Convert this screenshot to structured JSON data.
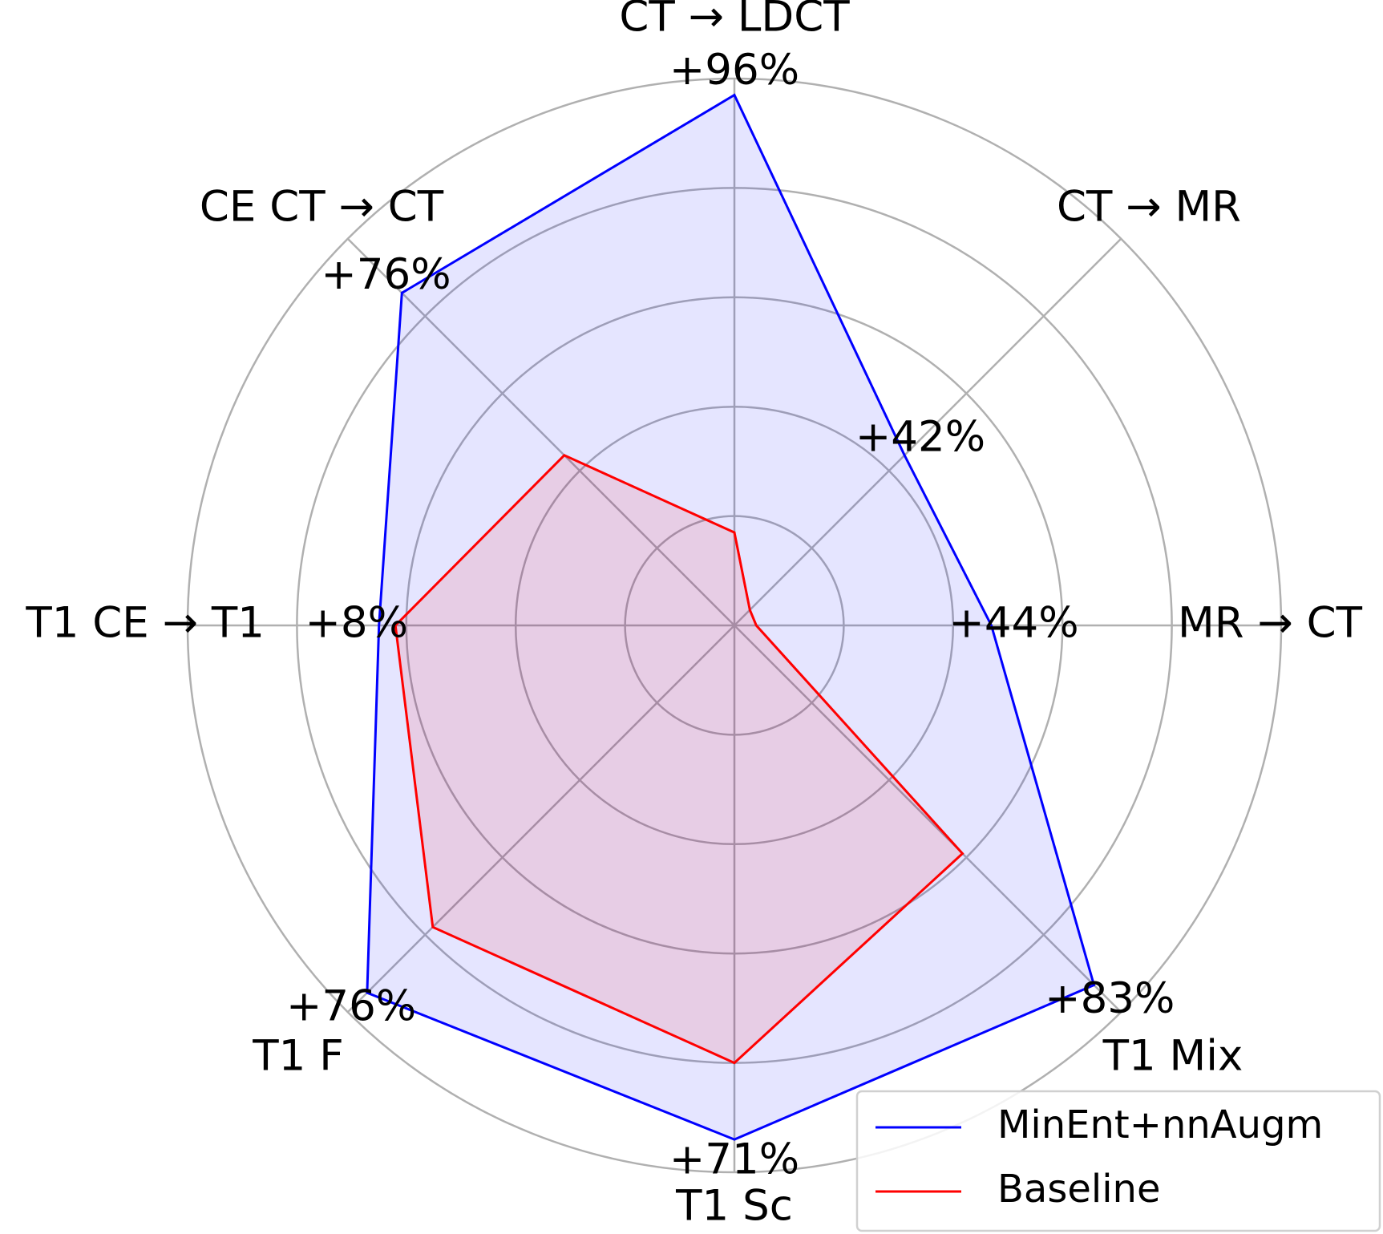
{
  "chart_data": {
    "type": "radar",
    "categories": [
      "CT → LDCT",
      "CT → MR",
      "MR → CT",
      "T1 Mix",
      "T1 Sc",
      "T1 F",
      "T1 CE → T1",
      "CE CT → CT"
    ],
    "rlim": [
      0,
      1
    ],
    "rticks": [
      0.2,
      0.4,
      0.6,
      0.8,
      1.0
    ],
    "grid": true,
    "legend": "lower right",
    "series": [
      {
        "name": "MinEnt+nnAugm",
        "color": "#0000ff",
        "values": [
          0.97,
          0.44,
          0.47,
          0.93,
          0.94,
          0.95,
          0.65,
          0.86
        ]
      },
      {
        "name": "Baseline",
        "color": "#ff0000",
        "values": [
          0.17,
          0.04,
          0.04,
          0.59,
          0.8,
          0.78,
          0.62,
          0.44
        ]
      }
    ],
    "annotations": [
      "+96%",
      "+42%",
      "+44%",
      "+83%",
      "+71%",
      "+76%",
      "+8%",
      "+76%"
    ]
  }
}
